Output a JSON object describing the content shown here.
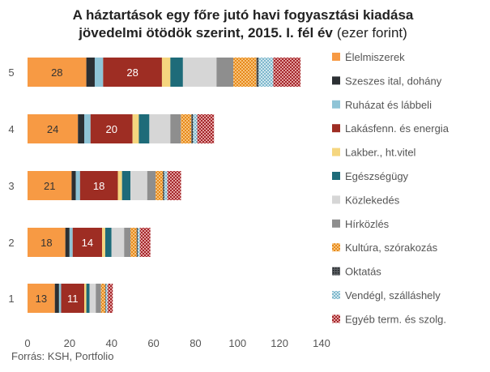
{
  "chart_data": {
    "type": "bar",
    "orientation": "horizontal",
    "stacked": true,
    "title_bold": "A háztartások egy főre jutó havi fogyasztási kiadása jövedelmi ötödök szerint, 2015. I. fél év",
    "title_unit": "(ezer forint)",
    "title": "A háztartások egy főre jutó havi fogyasztási kiadása jövedelmi ötödök szerint, 2015. I. fél év (ezer forint)",
    "source": "Forrás: KSH, Portfolio",
    "categories": [
      "1",
      "2",
      "3",
      "4",
      "5"
    ],
    "xlim": [
      0,
      140
    ],
    "xticks": [
      0,
      20,
      40,
      60,
      80,
      100,
      120,
      140
    ],
    "grid": false,
    "legend_position": "right",
    "series": [
      {
        "name": "Élelmiszerek",
        "color": "#F79A44",
        "pattern": "solid",
        "values": [
          13,
          18,
          21,
          24,
          28
        ]
      },
      {
        "name": "Szeszes ital, dohány",
        "color": "#2B2F33",
        "pattern": "solid",
        "values": [
          2,
          2,
          2,
          3,
          4
        ]
      },
      {
        "name": "Ruházat és lábbeli",
        "color": "#8FC4D6",
        "pattern": "solid",
        "values": [
          1,
          1.5,
          2,
          3,
          4
        ]
      },
      {
        "name": "Lakásfenntartás és energia",
        "color": "#9E2D23",
        "pattern": "solid",
        "values": [
          11,
          14,
          18,
          20,
          28
        ]
      },
      {
        "name": "Lakberendezés, háztartásvitel",
        "color": "#F5D67F",
        "pattern": "solid",
        "values": [
          1,
          1.5,
          2,
          3,
          4
        ]
      },
      {
        "name": "Egészségügy",
        "color": "#1E6B79",
        "pattern": "solid",
        "values": [
          1.5,
          3,
          4,
          5,
          6
        ]
      },
      {
        "name": "Közlekedés",
        "color": "#D6D6D6",
        "pattern": "solid",
        "values": [
          3,
          6,
          8,
          10,
          16
        ]
      },
      {
        "name": "Hírközlés",
        "color": "#8E8E8E",
        "pattern": "solid",
        "values": [
          2.5,
          3,
          4,
          5,
          8
        ]
      },
      {
        "name": "Kultúra, szórakozás",
        "color": "#F5A442",
        "pattern": "dots",
        "values": [
          2,
          3,
          3.5,
          5,
          11
        ]
      },
      {
        "name": "Oktatás",
        "color": "#2B2F33",
        "pattern": "dots",
        "values": [
          0.3,
          0.5,
          0.6,
          0.8,
          1
        ]
      },
      {
        "name": "Vendéglátás, szálláshely",
        "color": "#9CC9D9",
        "pattern": "dots",
        "values": [
          0.8,
          1,
          1.5,
          2,
          7
        ]
      },
      {
        "name": "Egyéb termékek és szolgáltatások",
        "color": "#A3262A",
        "pattern": "checker",
        "values": [
          2.5,
          5,
          6.5,
          8,
          13
        ]
      }
    ],
    "data_labels": [
      {
        "series": "Élelmiszerek",
        "category": "1",
        "text": "13"
      },
      {
        "series": "Élelmiszerek",
        "category": "2",
        "text": "18"
      },
      {
        "series": "Élelmiszerek",
        "category": "3",
        "text": "21"
      },
      {
        "series": "Élelmiszerek",
        "category": "4",
        "text": "24"
      },
      {
        "series": "Élelmiszerek",
        "category": "5",
        "text": "28"
      },
      {
        "series": "Lakásfenntartás és energia",
        "category": "1",
        "text": "11"
      },
      {
        "series": "Lakásfenntartás és energia",
        "category": "2",
        "text": "14"
      },
      {
        "series": "Lakásfenntartás és energia",
        "category": "3",
        "text": "18"
      },
      {
        "series": "Lakásfenntartás és energia",
        "category": "4",
        "text": "20"
      },
      {
        "series": "Lakásfenntartás és energia",
        "category": "5",
        "text": "28"
      }
    ],
    "legend_labels": [
      "Élelmiszerek",
      "Szeszes ital, dohány",
      "Ruházat és lábbeli",
      "Lakásfenn. és energia",
      "Lakber., ht.vitel",
      "Egészségügy",
      "Közlekedés",
      "Hírközlés",
      "Kultúra, szórakozás",
      "Oktatás",
      "Vendégl, szálláshely",
      "Egyéb term. és szolg."
    ]
  },
  "title_lines": [
    "A háztartások egy főre jutó havi fogyasztási kiadása",
    "jövedelmi ötödök szerint, 2015. I. fél év"
  ],
  "title_unit": "(ezer forint)"
}
